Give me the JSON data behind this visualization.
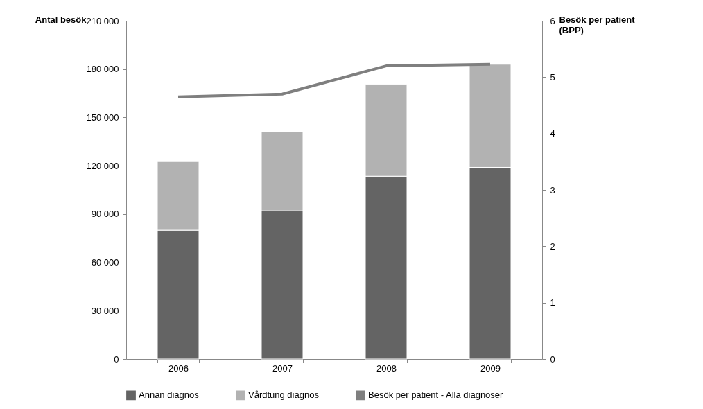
{
  "chart_data": {
    "type": "bar",
    "stacked": true,
    "categories": [
      "2006",
      "2007",
      "2008",
      "2009"
    ],
    "ylabel": "Antal besök",
    "y2label": "Besök per patient (BPP)",
    "ylim": [
      0,
      210000
    ],
    "yticks": [
      {
        "value": 0,
        "label": "0"
      },
      {
        "value": 30000,
        "label": "30 000"
      },
      {
        "value": 60000,
        "label": "60 000"
      },
      {
        "value": 90000,
        "label": "90 000"
      },
      {
        "value": 120000,
        "label": "120 000"
      },
      {
        "value": 150000,
        "label": "150 000"
      },
      {
        "value": 180000,
        "label": "180 000"
      },
      {
        "value": 210000,
        "label": "210 000"
      }
    ],
    "y2lim": [
      0,
      6
    ],
    "y2ticks": [
      0,
      1,
      2,
      3,
      4,
      5,
      6
    ],
    "series": [
      {
        "name": "Annan diagnos",
        "color": "#646464",
        "values": [
          80000,
          92000,
          113500,
          119000
        ]
      },
      {
        "name": "Vårdtung diagnos",
        "color": "#b2b2b2",
        "values": [
          43000,
          49000,
          57000,
          64000
        ]
      },
      {
        "name": "Besök per patient - Alla diagnoser",
        "color": "#7f7f7f",
        "type": "line",
        "axis": "y2",
        "values": [
          4.65,
          4.7,
          5.2,
          5.23
        ]
      }
    ],
    "grid": false,
    "legend": "bottom"
  }
}
